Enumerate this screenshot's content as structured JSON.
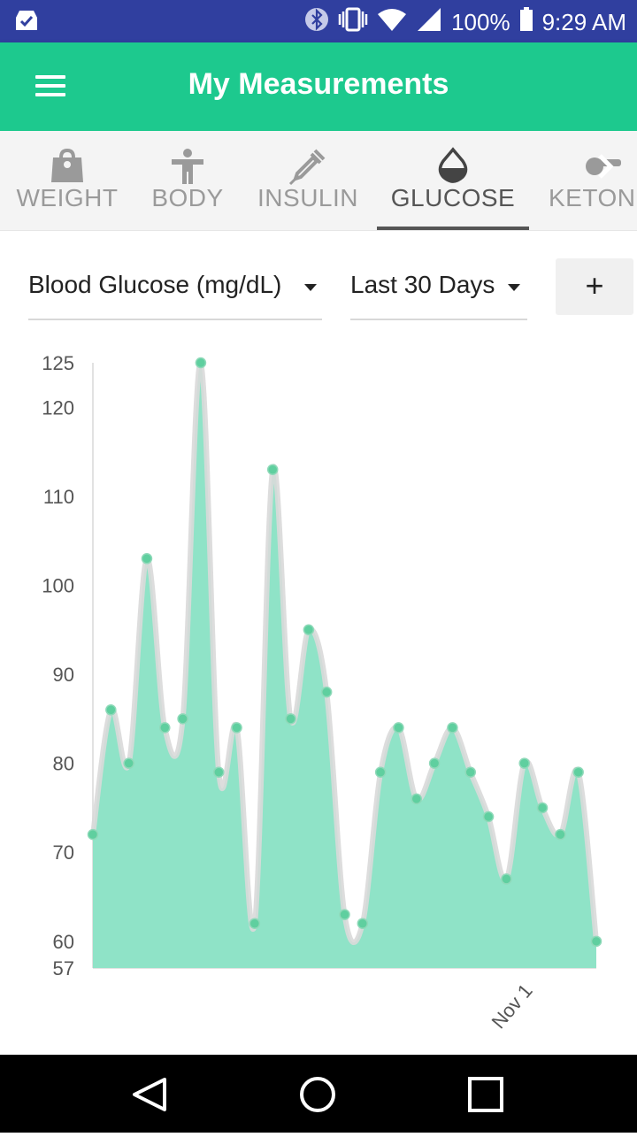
{
  "status_bar": {
    "battery": "100%",
    "time": "9:29 AM"
  },
  "app_bar": {
    "title": "My Measurements",
    "menu_icon": "hamburger-menu-icon"
  },
  "tabs": [
    {
      "label": "WEIGHT",
      "icon": "weight-bag-icon",
      "active": false
    },
    {
      "label": "BODY",
      "icon": "body-figure-icon",
      "active": false
    },
    {
      "label": "INSULIN",
      "icon": "syringe-icon",
      "active": false
    },
    {
      "label": "GLUCOSE",
      "icon": "drop-icon",
      "active": true
    },
    {
      "label": "KETONES",
      "icon": "ketone-icon",
      "active": false
    }
  ],
  "controls": {
    "measure_select": "Blood Glucose (mg/dL)",
    "range_select": "Last 30 Days",
    "add_label": "+"
  },
  "colors": {
    "primary": "#1dc98e",
    "status_bar": "#303f9f",
    "chart_fill": "#8fe3c7",
    "chart_point": "#5fcf9f"
  },
  "chart_data": {
    "type": "area",
    "ylim": [
      57,
      125
    ],
    "y_ticks": [
      125,
      120,
      110,
      100,
      90,
      80,
      70,
      60,
      57
    ],
    "x_ticks": [
      {
        "label": "Nov 1",
        "index": 24.5
      }
    ],
    "series": [
      {
        "values": [
          72,
          86,
          80,
          103,
          84,
          85,
          125,
          79,
          84,
          62,
          113,
          85,
          95,
          88,
          63,
          62,
          79,
          84,
          76,
          80,
          84,
          79,
          74,
          67,
          80,
          75,
          72,
          79,
          60
        ]
      }
    ]
  }
}
